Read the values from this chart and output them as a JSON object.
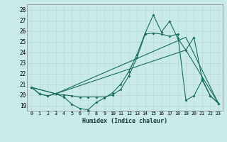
{
  "xlabel": "Humidex (Indice chaleur)",
  "bg_color": "#c8eae8",
  "grid_color": "#b0d8d4",
  "line_color": "#1a6b60",
  "xlim": [
    -0.5,
    23.5
  ],
  "ylim": [
    18.5,
    28.5
  ],
  "yticks": [
    19,
    20,
    21,
    22,
    23,
    24,
    25,
    26,
    27,
    28
  ],
  "xticks": [
    0,
    1,
    2,
    3,
    4,
    5,
    6,
    7,
    8,
    9,
    10,
    11,
    12,
    13,
    14,
    15,
    16,
    17,
    18,
    19,
    20,
    21,
    22,
    23
  ],
  "series1_x": [
    0,
    1,
    2,
    3,
    4,
    5,
    6,
    7,
    8,
    9,
    10,
    11,
    12,
    13,
    14,
    15,
    16,
    17,
    18,
    19,
    20,
    21,
    22,
    23
  ],
  "series1_y": [
    20.7,
    20.1,
    19.9,
    20.1,
    19.8,
    19.1,
    18.7,
    18.6,
    19.3,
    19.7,
    20.2,
    21.0,
    22.2,
    23.8,
    25.8,
    27.5,
    25.9,
    26.9,
    25.3,
    24.2,
    25.4,
    21.5,
    19.9,
    19.2
  ],
  "series2_x": [
    0,
    1,
    2,
    3,
    4,
    5,
    6,
    7,
    8,
    9,
    10,
    11,
    12,
    13,
    14,
    15,
    16,
    17,
    18,
    19,
    20,
    21,
    22,
    23
  ],
  "series2_y": [
    20.7,
    20.1,
    19.9,
    20.1,
    20.0,
    19.9,
    19.8,
    19.8,
    19.8,
    19.8,
    20.0,
    20.5,
    21.8,
    23.5,
    25.7,
    25.8,
    25.7,
    25.5,
    25.7,
    19.5,
    19.9,
    21.4,
    19.9,
    19.2
  ],
  "series3_x": [
    0,
    3,
    19,
    23
  ],
  "series3_y": [
    20.7,
    20.1,
    25.4,
    19.2
  ],
  "series4_x": [
    0,
    3,
    19,
    23
  ],
  "series4_y": [
    20.7,
    20.1,
    24.2,
    19.2
  ]
}
